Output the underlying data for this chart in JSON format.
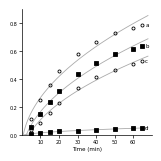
{
  "title": "",
  "xlabel": "Time (min)",
  "ylabel": "",
  "series": {
    "a": {
      "x": [
        5,
        10,
        15,
        20,
        30,
        40,
        50,
        60,
        65
      ],
      "y": [
        0.12,
        0.25,
        0.36,
        0.46,
        0.58,
        0.67,
        0.73,
        0.77,
        0.79
      ],
      "marker": "o",
      "fillstyle": "none",
      "label": "a"
    },
    "b": {
      "x": [
        5,
        10,
        15,
        20,
        30,
        40,
        50,
        60,
        65
      ],
      "y": [
        0.06,
        0.15,
        0.24,
        0.32,
        0.44,
        0.52,
        0.58,
        0.62,
        0.64
      ],
      "marker": "s",
      "fillstyle": "full",
      "label": "b"
    },
    "c": {
      "x": [
        5,
        10,
        15,
        20,
        30,
        40,
        50,
        60,
        65
      ],
      "y": [
        0.04,
        0.09,
        0.16,
        0.23,
        0.34,
        0.42,
        0.47,
        0.51,
        0.53
      ],
      "marker": "o",
      "fillstyle": "none",
      "label": "c"
    },
    "d": {
      "x": [
        5,
        10,
        15,
        20,
        30,
        40,
        50,
        60,
        65
      ],
      "y": [
        0.01,
        0.02,
        0.025,
        0.03,
        0.035,
        0.04,
        0.045,
        0.05,
        0.055
      ],
      "marker": "s",
      "fillstyle": "full",
      "label": "d"
    }
  },
  "xlim": [
    0,
    70
  ],
  "ylim": [
    0,
    0.9
  ],
  "xticks": [
    10,
    20,
    30,
    40,
    50,
    60
  ],
  "yticks": [
    0.0,
    0.2,
    0.4,
    0.6,
    0.8
  ],
  "label_fontsize": 4,
  "tick_fontsize": 3.5,
  "linecolor": "#aaaaaa",
  "background_color": "#ffffff"
}
